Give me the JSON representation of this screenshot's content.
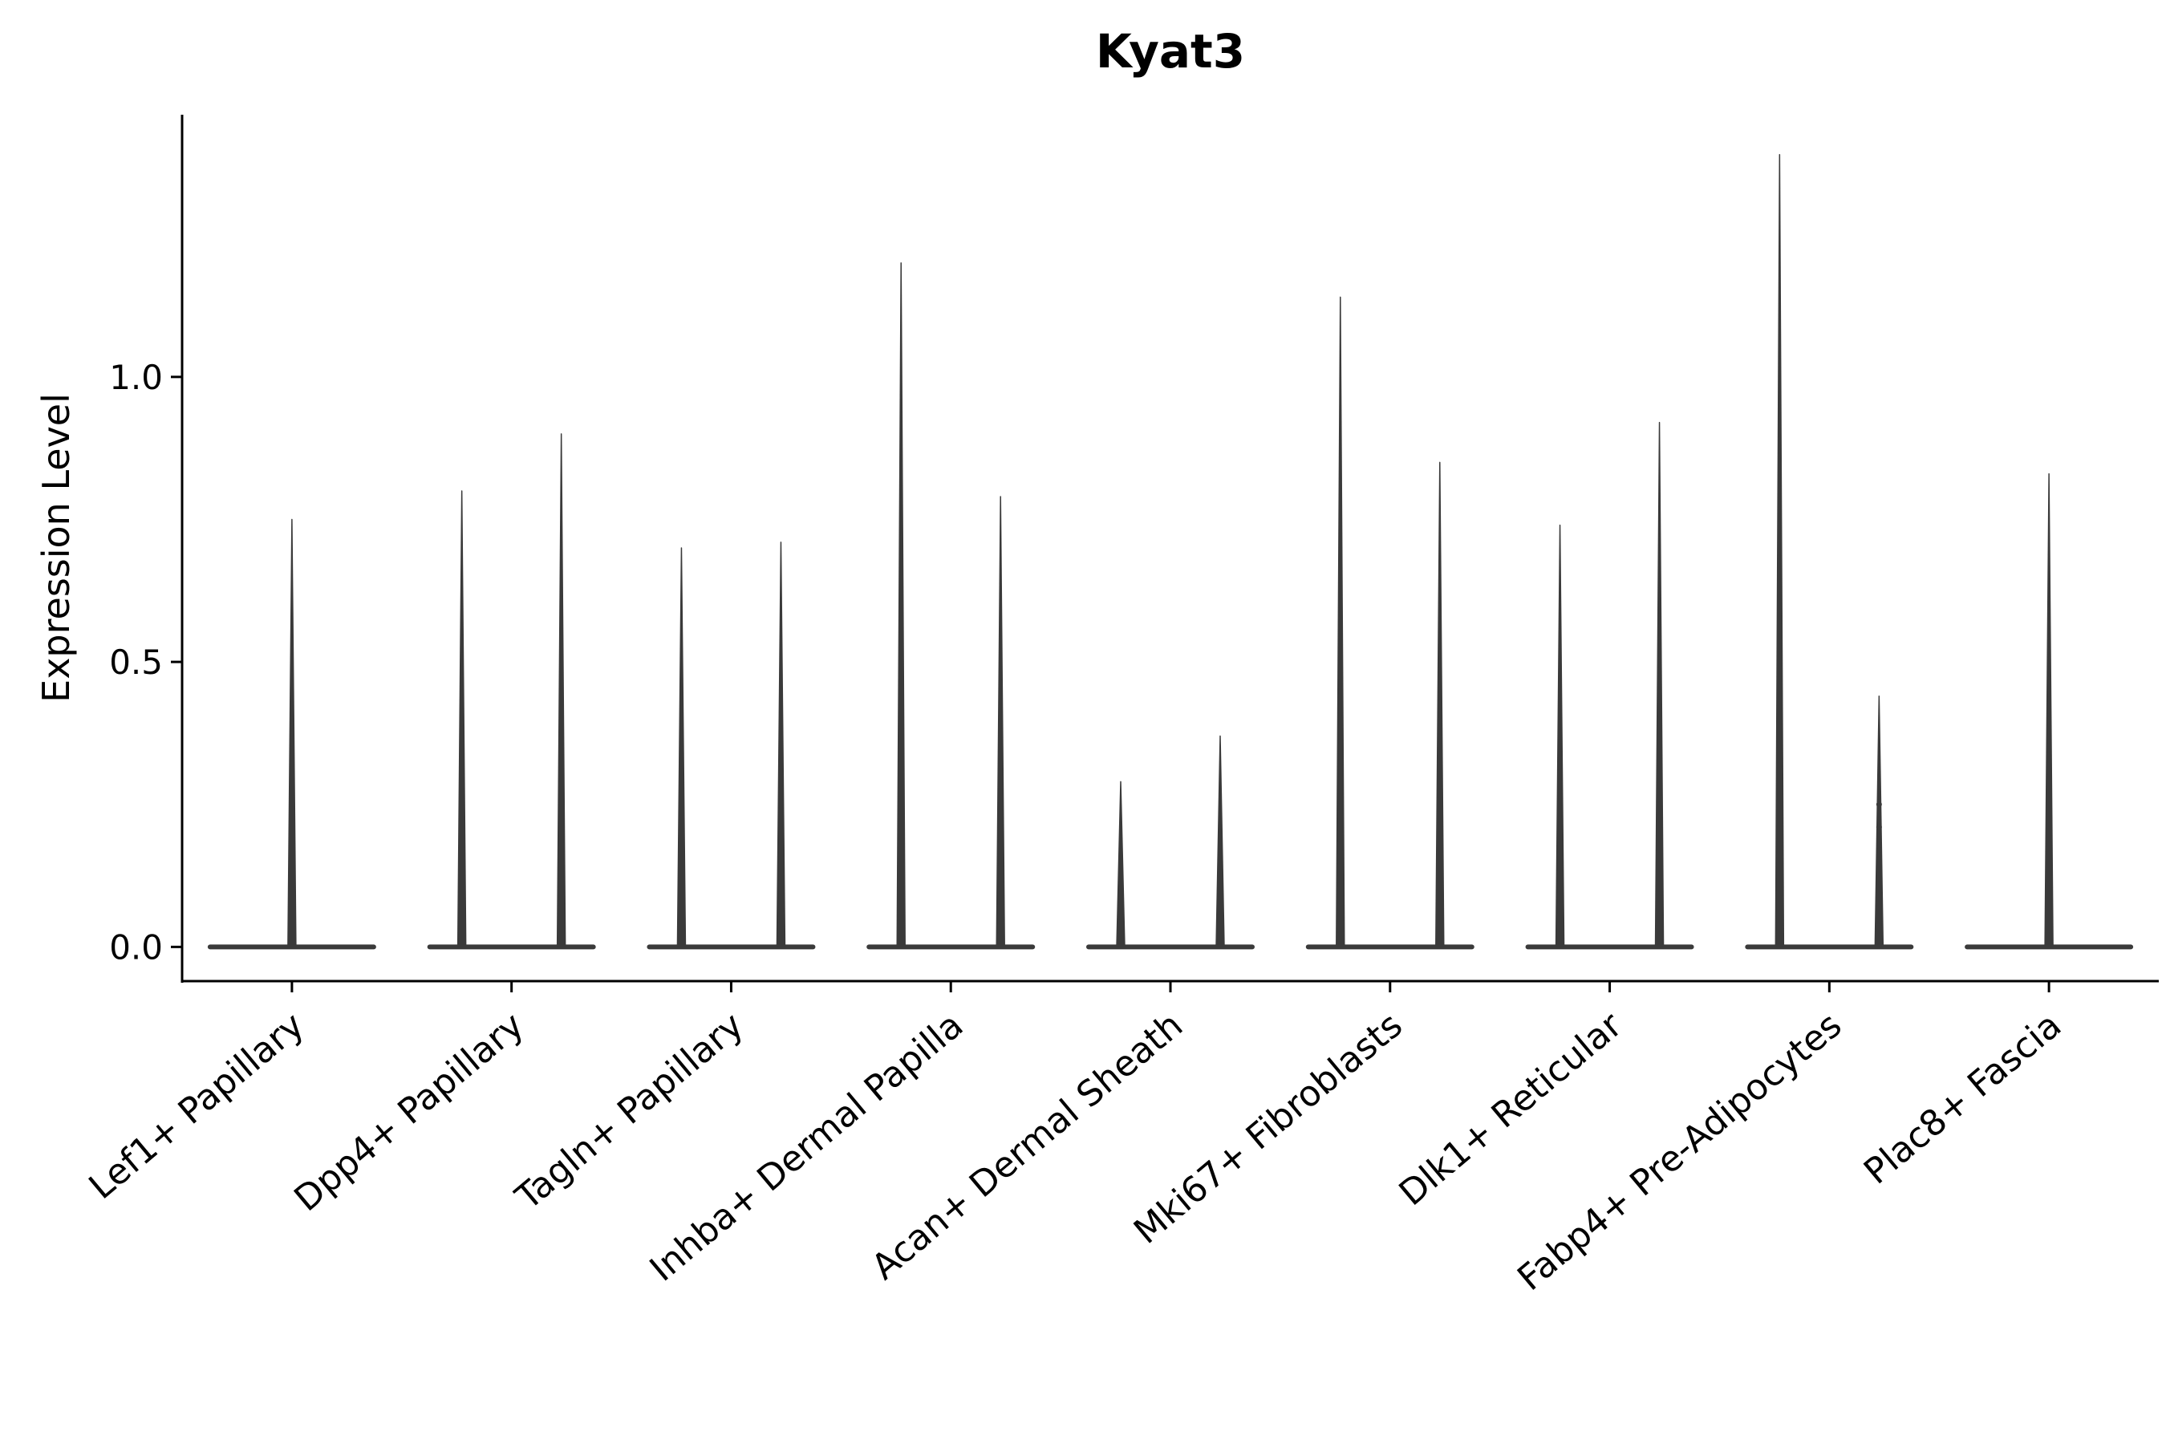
{
  "page": {
    "background": "#ffffff"
  },
  "chart_data": {
    "type": "violin",
    "title": "Kyat3",
    "ylabel": "Expression Level",
    "xlabel": "",
    "grid": false,
    "legend": null,
    "ylim": [
      -0.06,
      1.46
    ],
    "yticks": [
      "0.0",
      "0.5",
      "1.0"
    ],
    "ytick_values": [
      0.0,
      0.5,
      1.0
    ],
    "violin_color": "#3a3a3a",
    "axis_color": "#000000",
    "categories": [
      "Lef1+ Papillary",
      "Dpp4+ Papillary",
      "Tagln+ Papillary",
      "Inhba+ Dermal Papilla",
      "Acan+ Dermal Sheath",
      "Mki67+ Fibroblasts",
      "Dlk1+ Reticular",
      "Fabp4+ Pre-Adipocytes",
      "Plac8+ Fascia"
    ],
    "violins": [
      {
        "label": "Lef1+ Papillary",
        "baseline": 0.0,
        "spikes": [
          {
            "pos": "center",
            "max": 0.75
          }
        ]
      },
      {
        "label": "Dpp4+ Papillary",
        "baseline": 0.0,
        "spikes": [
          {
            "pos": "left",
            "max": 0.8
          },
          {
            "pos": "right",
            "max": 0.9
          }
        ]
      },
      {
        "label": "Tagln+ Papillary",
        "baseline": 0.0,
        "spikes": [
          {
            "pos": "left",
            "max": 0.7
          },
          {
            "pos": "right",
            "max": 0.71
          }
        ]
      },
      {
        "label": "Inhba+ Dermal Papilla",
        "baseline": 0.0,
        "spikes": [
          {
            "pos": "left",
            "max": 1.2
          },
          {
            "pos": "right",
            "max": 0.79
          }
        ]
      },
      {
        "label": "Acan+ Dermal Sheath",
        "baseline": 0.0,
        "spikes": [
          {
            "pos": "left",
            "max": 0.29
          },
          {
            "pos": "right",
            "max": 0.37
          }
        ]
      },
      {
        "label": "Mki67+ Fibroblasts",
        "baseline": 0.0,
        "spikes": [
          {
            "pos": "left",
            "max": 1.14
          },
          {
            "pos": "right",
            "max": 0.85
          }
        ]
      },
      {
        "label": "Dlk1+ Reticular",
        "baseline": 0.0,
        "spikes": [
          {
            "pos": "left",
            "max": 0.74
          },
          {
            "pos": "right",
            "max": 0.92
          }
        ]
      },
      {
        "label": "Fabp4+ Pre-Adipocytes",
        "baseline": 0.0,
        "spikes": [
          {
            "pos": "left",
            "max": 1.39
          },
          {
            "pos": "right",
            "max": 0.44
          }
        ],
        "outlier_dots": {
          "pos": "right",
          "values": [
            0.17,
            0.21,
            0.25
          ]
        }
      },
      {
        "label": "Plac8+ Fascia",
        "baseline": 0.0,
        "spikes": [
          {
            "pos": "center",
            "max": 0.83
          }
        ]
      }
    ]
  }
}
